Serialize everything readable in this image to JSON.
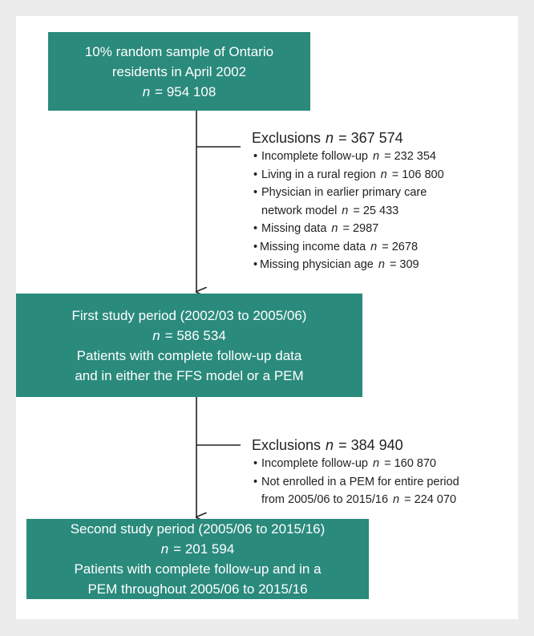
{
  "boxes": [
    {
      "lines": [
        "10% random sample of Ontario",
        "residents in April 2002"
      ],
      "count": {
        "symbol": "n",
        "value": "= 954 108"
      },
      "description": []
    },
    {
      "lines": [
        "First study period (2002/03 to 2005/06)"
      ],
      "count": {
        "symbol": "n",
        "value": "= 586 534"
      },
      "description": [
        "Patients with complete follow-up data",
        "and in either the FFS model or a PEM"
      ]
    },
    {
      "lines": [
        "Second study period (2005/06 to 2015/16)"
      ],
      "count": {
        "symbol": "n",
        "value": "= 201 594"
      },
      "description": [
        "Patients with complete follow-up and in a",
        "PEM throughout 2005/06 to 2015/16"
      ]
    }
  ],
  "exclusions": [
    {
      "title": "Exclusions",
      "count": {
        "symbol": "n",
        "value": "= 367 574"
      },
      "items": [
        {
          "lines": [
            "Incomplete follow-up"
          ],
          "symbol": "n",
          "value": "= 232 354",
          "sub": []
        },
        {
          "lines": [
            "Living in a rural region"
          ],
          "symbol": "n",
          "value": "= 106 800",
          "sub": []
        },
        {
          "lines": [
            "Physician in earlier primary care",
            "network model"
          ],
          "symbol": "n",
          "value": "= 25 433",
          "sub": []
        },
        {
          "lines": [
            "Missing data"
          ],
          "symbol": "n",
          "value": "= 2987",
          "sub": [
            {
              "lines": [
                "Missing income data"
              ],
              "symbol": "n",
              "value": "= 2678"
            },
            {
              "lines": [
                "Missing physician age"
              ],
              "symbol": "n",
              "value": "= 309"
            }
          ]
        }
      ]
    },
    {
      "title": "Exclusions",
      "count": {
        "symbol": "n",
        "value": "= 384 940"
      },
      "items": [
        {
          "lines": [
            "Incomplete follow-up"
          ],
          "symbol": "n",
          "value": "= 160 870",
          "sub": []
        },
        {
          "lines": [
            "Not enrolled in a PEM for entire period",
            "from 2005/06 to 2015/16"
          ],
          "symbol": "n",
          "value": "= 224 070",
          "sub": []
        }
      ]
    }
  ]
}
